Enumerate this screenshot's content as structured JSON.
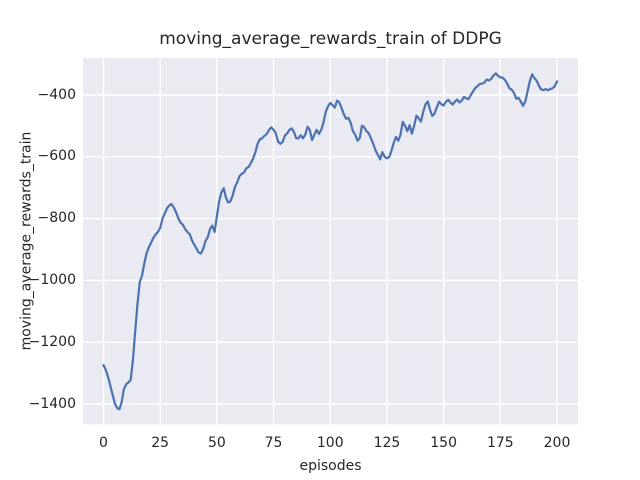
{
  "figure": {
    "title": "moving_average_rewards_train of DDPG",
    "xlabel": "episodes",
    "ylabel": "moving_average_rewards_train",
    "colors": {
      "figure_background": "#ffffff",
      "axes_background": "#eaeaf2",
      "grid": "#ffffff",
      "line": "#4c72b0",
      "text": "#262626"
    }
  },
  "chart_data": {
    "type": "line",
    "title": "moving_average_rewards_train of DDPG",
    "xlabel": "episodes",
    "ylabel": "moving_average_rewards_train",
    "xlim": [
      -10,
      210
    ],
    "ylim": [
      -1466,
      -281
    ],
    "grid": true,
    "legend": "none",
    "xticks": [
      0,
      25,
      50,
      75,
      100,
      125,
      150,
      175,
      200
    ],
    "xtick_labels": [
      "0",
      "25",
      "50",
      "75",
      "100",
      "125",
      "150",
      "175",
      "200"
    ],
    "yticks": [
      -400,
      -600,
      -800,
      -1000,
      -1200,
      -1400
    ],
    "ytick_labels": [
      "−400",
      "−600",
      "−800",
      "−1000",
      "−1200",
      "−1400"
    ],
    "series": [
      {
        "name": "moving_average_rewards_train",
        "x_start": 0,
        "x_step": 1,
        "values": [
          -1274,
          -1290,
          -1312,
          -1340,
          -1370,
          -1398,
          -1413,
          -1417,
          -1395,
          -1352,
          -1336,
          -1330,
          -1322,
          -1255,
          -1165,
          -1075,
          -1005,
          -985,
          -945,
          -912,
          -893,
          -878,
          -862,
          -851,
          -843,
          -830,
          -800,
          -784,
          -767,
          -757,
          -753,
          -764,
          -780,
          -799,
          -813,
          -820,
          -834,
          -843,
          -850,
          -870,
          -884,
          -897,
          -910,
          -913,
          -897,
          -872,
          -860,
          -833,
          -823,
          -843,
          -792,
          -745,
          -715,
          -702,
          -732,
          -748,
          -744,
          -725,
          -697,
          -682,
          -662,
          -655,
          -650,
          -637,
          -633,
          -620,
          -605,
          -585,
          -557,
          -543,
          -540,
          -532,
          -526,
          -513,
          -505,
          -513,
          -524,
          -551,
          -558,
          -552,
          -531,
          -524,
          -513,
          -508,
          -520,
          -540,
          -540,
          -530,
          -540,
          -528,
          -503,
          -513,
          -546,
          -528,
          -513,
          -526,
          -513,
          -490,
          -455,
          -437,
          -426,
          -432,
          -441,
          -418,
          -424,
          -442,
          -463,
          -477,
          -474,
          -490,
          -517,
          -528,
          -548,
          -540,
          -499,
          -505,
          -517,
          -524,
          -541,
          -559,
          -580,
          -594,
          -608,
          -585,
          -600,
          -605,
          -601,
          -580,
          -555,
          -536,
          -548,
          -528,
          -487,
          -500,
          -517,
          -497,
          -525,
          -500,
          -467,
          -475,
          -486,
          -455,
          -430,
          -421,
          -448,
          -468,
          -460,
          -440,
          -422,
          -430,
          -434,
          -422,
          -416,
          -424,
          -431,
          -421,
          -415,
          -424,
          -418,
          -406,
          -411,
          -413,
          -400,
          -388,
          -377,
          -371,
          -364,
          -363,
          -360,
          -350,
          -353,
          -348,
          -337,
          -330,
          -338,
          -343,
          -344,
          -351,
          -362,
          -378,
          -383,
          -393,
          -412,
          -409,
          -421,
          -435,
          -421,
          -389,
          -355,
          -333,
          -345,
          -353,
          -370,
          -382,
          -384,
          -381,
          -384,
          -381,
          -378,
          -372,
          -356
        ]
      }
    ]
  }
}
